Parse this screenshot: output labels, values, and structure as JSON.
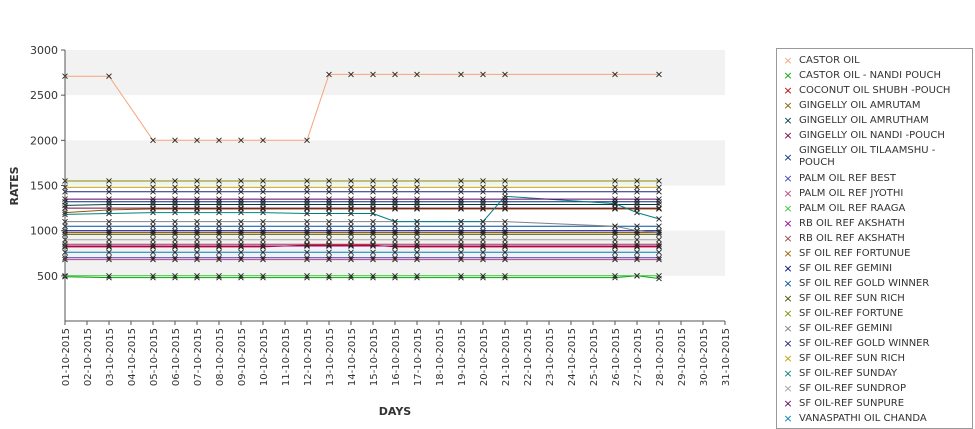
{
  "chart_data": {
    "type": "line",
    "title": "",
    "xlabel": "DAYS",
    "ylabel": "RATES",
    "ylim": [
      0,
      3000
    ],
    "yticks": [
      500,
      1000,
      1500,
      2000,
      2500,
      3000
    ],
    "grid": "horizontal bands",
    "legend_position": "right",
    "categories": [
      "01-10-2015",
      "02-10-2015",
      "03-10-2015",
      "04-10-2015",
      "05-10-2015",
      "06-10-2015",
      "07-10-2015",
      "08-10-2015",
      "09-10-2015",
      "10-10-2015",
      "11-10-2015",
      "12-10-2015",
      "13-10-2015",
      "14-10-2015",
      "15-10-2015",
      "16-10-2015",
      "17-10-2015",
      "18-10-2015",
      "19-10-2015",
      "20-10-2015",
      "21-10-2015",
      "22-10-2015",
      "23-10-2015",
      "24-10-2015",
      "25-10-2015",
      "26-10-2015",
      "27-10-2015",
      "28-10-2015",
      "29-10-2015",
      "30-10-2015",
      "31-10-2015"
    ],
    "series": [
      {
        "name": "CASTOR OIL",
        "color": "#f5a47a",
        "values": [
          2710,
          null,
          2710,
          null,
          2000,
          2000,
          2000,
          2000,
          2000,
          2000,
          null,
          2000,
          2730,
          2730,
          2730,
          2730,
          2730,
          null,
          2730,
          2730,
          2730,
          null,
          null,
          null,
          null,
          2730,
          null,
          2730,
          null,
          null,
          null
        ]
      },
      {
        "name": "CASTOR OIL - NANDI POUCH",
        "color": "#00a800",
        "values": [
          490,
          null,
          480,
          null,
          480,
          480,
          480,
          480,
          480,
          480,
          null,
          480,
          480,
          480,
          480,
          480,
          480,
          null,
          480,
          480,
          480,
          null,
          null,
          null,
          null,
          480,
          500,
          470,
          null,
          null,
          null
        ]
      },
      {
        "name": "COCONUT OIL SHUBH -POUCH",
        "color": "#c00000",
        "values": [
          820,
          null,
          820,
          null,
          820,
          820,
          820,
          820,
          820,
          820,
          null,
          840,
          840,
          840,
          840,
          820,
          820,
          null,
          820,
          820,
          820,
          null,
          null,
          null,
          null,
          820,
          820,
          820,
          null,
          null,
          null
        ]
      },
      {
        "name": "GINGELLY OIL AMRUTAM",
        "color": "#806000",
        "values": [
          1200,
          null,
          1230,
          null,
          1240,
          1240,
          1240,
          1240,
          1240,
          1240,
          null,
          1240,
          1240,
          1240,
          1240,
          1240,
          1240,
          null,
          1240,
          1240,
          1240,
          null,
          null,
          null,
          null,
          1240,
          1240,
          1240,
          null,
          null,
          null
        ]
      },
      {
        "name": "GINGELLY OIL AMRUTHAM",
        "color": "#004040",
        "values": [
          1280,
          null,
          1290,
          null,
          1290,
          1290,
          1290,
          1290,
          1290,
          1290,
          null,
          1290,
          1290,
          1290,
          1290,
          1290,
          1290,
          null,
          1290,
          1290,
          1290,
          null,
          null,
          null,
          null,
          1290,
          1290,
          1290,
          null,
          null,
          null
        ]
      },
      {
        "name": "GINGELLY OIL NANDI -POUCH",
        "color": "#800040",
        "values": [
          1250,
          null,
          1250,
          null,
          1250,
          1250,
          1250,
          1250,
          1250,
          1250,
          null,
          1250,
          1250,
          1250,
          1250,
          1250,
          1250,
          null,
          1250,
          1250,
          1250,
          null,
          null,
          null,
          null,
          1250,
          1250,
          1250,
          null,
          null,
          null
        ]
      },
      {
        "name": "GINGELLY OIL TILAAMSHU -POUCH",
        "color": "#003080",
        "values": [
          1320,
          null,
          1320,
          null,
          1320,
          1320,
          1320,
          1320,
          1320,
          1320,
          null,
          1320,
          1320,
          1320,
          1320,
          1320,
          1320,
          null,
          1320,
          1320,
          1320,
          null,
          null,
          null,
          null,
          1320,
          1320,
          1320,
          null,
          null,
          null
        ]
      },
      {
        "name": "PALM OIL REF BEST",
        "color": "#4040c0",
        "values": [
          700,
          null,
          700,
          null,
          700,
          700,
          700,
          700,
          700,
          700,
          null,
          700,
          700,
          700,
          700,
          700,
          700,
          null,
          700,
          700,
          700,
          null,
          null,
          null,
          null,
          700,
          700,
          700,
          null,
          null,
          null
        ]
      },
      {
        "name": "PALM OIL REF JYOTHI",
        "color": "#c04080",
        "values": [
          680,
          null,
          680,
          null,
          680,
          680,
          680,
          680,
          680,
          680,
          null,
          680,
          680,
          680,
          680,
          680,
          680,
          null,
          680,
          680,
          680,
          null,
          null,
          null,
          null,
          680,
          680,
          680,
          null,
          null,
          null
        ]
      },
      {
        "name": "PALM OIL REF RAAGA",
        "color": "#40c040",
        "values": [
          500,
          null,
          500,
          null,
          500,
          500,
          500,
          500,
          500,
          500,
          null,
          500,
          500,
          500,
          500,
          500,
          500,
          null,
          500,
          500,
          500,
          null,
          null,
          null,
          null,
          500,
          500,
          500,
          null,
          null,
          null
        ]
      },
      {
        "name": "RB OIL REF  AKSHATH",
        "color": "#a000a0",
        "values": [
          830,
          null,
          830,
          null,
          830,
          830,
          830,
          830,
          830,
          830,
          null,
          830,
          830,
          830,
          830,
          830,
          830,
          null,
          830,
          830,
          830,
          null,
          null,
          null,
          null,
          830,
          830,
          830,
          null,
          null,
          null
        ]
      },
      {
        "name": "RB OIL REF AKSHATH",
        "color": "#a04040",
        "values": [
          850,
          null,
          850,
          null,
          850,
          850,
          850,
          850,
          850,
          850,
          null,
          850,
          850,
          850,
          850,
          850,
          850,
          null,
          850,
          850,
          850,
          null,
          null,
          null,
          null,
          850,
          850,
          850,
          null,
          null,
          null
        ]
      },
      {
        "name": "SF OIL REF FORTUNUE",
        "color": "#a06000",
        "values": [
          980,
          null,
          980,
          null,
          980,
          980,
          980,
          980,
          980,
          980,
          null,
          980,
          980,
          980,
          980,
          980,
          980,
          null,
          980,
          980,
          980,
          null,
          null,
          null,
          null,
          980,
          980,
          980,
          null,
          null,
          null
        ]
      },
      {
        "name": "SF OIL REF GEMINI",
        "color": "#000080",
        "values": [
          1000,
          null,
          1000,
          null,
          1000,
          1000,
          1000,
          1000,
          1000,
          1000,
          null,
          1000,
          1000,
          1000,
          1000,
          1000,
          1000,
          null,
          1000,
          1000,
          1000,
          null,
          null,
          null,
          null,
          1000,
          1000,
          1000,
          null,
          null,
          null
        ]
      },
      {
        "name": "SF OIL REF GOLD WINNER",
        "color": "#0050a0",
        "values": [
          1050,
          null,
          1050,
          null,
          1050,
          1050,
          1050,
          1050,
          1050,
          1050,
          null,
          1050,
          1050,
          1050,
          1050,
          1050,
          1050,
          null,
          1050,
          1050,
          1050,
          null,
          null,
          null,
          null,
          1050,
          1050,
          1050,
          null,
          null,
          null
        ]
      },
      {
        "name": "SF OIL REF SUN RICH",
        "color": "#405000",
        "values": [
          960,
          null,
          960,
          null,
          960,
          960,
          960,
          960,
          960,
          960,
          null,
          960,
          960,
          960,
          960,
          960,
          960,
          null,
          960,
          960,
          960,
          null,
          null,
          null,
          null,
          960,
          960,
          960,
          null,
          null,
          null
        ]
      },
      {
        "name": "SF OIL-REF FORTUNE",
        "color": "#809000",
        "values": [
          1550,
          null,
          1550,
          null,
          1550,
          1550,
          1550,
          1550,
          1550,
          1550,
          null,
          1550,
          1550,
          1550,
          1550,
          1550,
          1550,
          null,
          1550,
          1550,
          1550,
          null,
          null,
          null,
          null,
          1550,
          1550,
          1550,
          null,
          null,
          null
        ]
      },
      {
        "name": "SF OIL-REF GEMINI",
        "color": "#808080",
        "values": [
          1100,
          null,
          1100,
          null,
          1100,
          1100,
          1100,
          1100,
          1100,
          1100,
          null,
          1100,
          1100,
          1100,
          1100,
          1100,
          1100,
          null,
          1100,
          1100,
          1100,
          null,
          null,
          null,
          null,
          1050,
          1000,
          980,
          null,
          null,
          null
        ]
      },
      {
        "name": "SF OIL-REF GOLD WINNER",
        "color": "#202080",
        "values": [
          1430,
          null,
          1430,
          null,
          1430,
          1430,
          1430,
          1430,
          1430,
          1430,
          null,
          1430,
          1430,
          1430,
          1430,
          1430,
          1430,
          null,
          1430,
          1430,
          1430,
          null,
          null,
          null,
          null,
          1430,
          1430,
          1430,
          null,
          null,
          null
        ]
      },
      {
        "name": "SF OIL-REF SUN RICH",
        "color": "#c0a000",
        "values": [
          1480,
          null,
          1480,
          null,
          1480,
          1480,
          1480,
          1480,
          1480,
          1480,
          null,
          1480,
          1480,
          1480,
          1480,
          1480,
          1480,
          null,
          1480,
          1480,
          1480,
          null,
          null,
          null,
          null,
          1480,
          1480,
          1480,
          null,
          null,
          null
        ]
      },
      {
        "name": "SF OIL-REF SUNDAY",
        "color": "#008080",
        "values": [
          1180,
          null,
          1190,
          null,
          1200,
          1200,
          1200,
          1200,
          1200,
          1200,
          null,
          1190,
          1190,
          1190,
          1190,
          1100,
          1100,
          null,
          1100,
          1100,
          1380,
          null,
          null,
          null,
          null,
          1300,
          1200,
          1130,
          null,
          null,
          null
        ]
      },
      {
        "name": "SF OIL-REF SUNDROP",
        "color": "#a0a0a0",
        "values": [
          900,
          null,
          900,
          null,
          900,
          900,
          900,
          900,
          900,
          900,
          null,
          900,
          900,
          900,
          900,
          900,
          900,
          null,
          900,
          900,
          900,
          null,
          null,
          null,
          null,
          900,
          900,
          900,
          null,
          null,
          null
        ]
      },
      {
        "name": "SF OIL-REF SUNPURE",
        "color": "#600060",
        "values": [
          1350,
          null,
          1350,
          null,
          1350,
          1350,
          1350,
          1350,
          1350,
          1350,
          null,
          1350,
          1350,
          1350,
          1350,
          1350,
          1350,
          null,
          1350,
          1350,
          1350,
          null,
          null,
          null,
          null,
          1350,
          1350,
          1350,
          null,
          null,
          null
        ]
      },
      {
        "name": "VANASPATHI OIL CHANDA",
        "color": "#0080c0",
        "values": [
          760,
          null,
          760,
          null,
          760,
          760,
          760,
          760,
          760,
          760,
          null,
          760,
          760,
          760,
          760,
          760,
          760,
          null,
          760,
          760,
          760,
          null,
          null,
          null,
          null,
          760,
          760,
          760,
          null,
          null,
          null
        ]
      }
    ]
  }
}
